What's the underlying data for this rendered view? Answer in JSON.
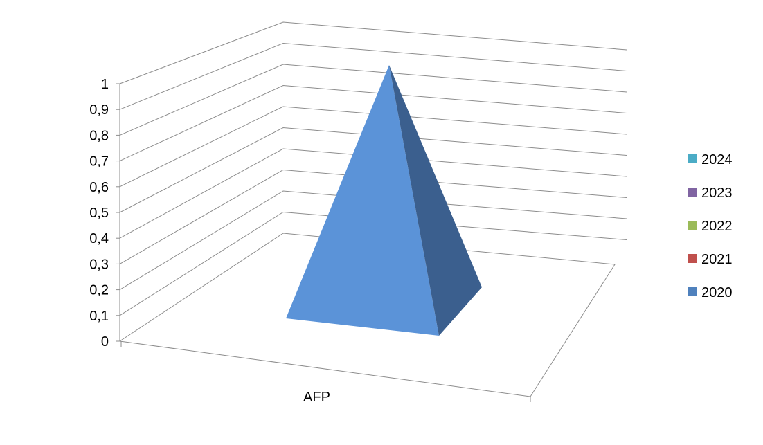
{
  "chart_data": {
    "type": "bar",
    "style": "3d-pyramid",
    "categories": [
      "AFP"
    ],
    "series": [
      {
        "name": "2020",
        "values": [
          1
        ],
        "color": "#4F81BD"
      },
      {
        "name": "2021",
        "values": [
          0
        ],
        "color": "#C0504D"
      },
      {
        "name": "2022",
        "values": [
          0
        ],
        "color": "#9BBB59"
      },
      {
        "name": "2023",
        "values": [
          0
        ],
        "color": "#8064A2"
      },
      {
        "name": "2024",
        "values": [
          0
        ],
        "color": "#4BACC6"
      }
    ],
    "y_ticks": [
      "0",
      "0,1",
      "0,2",
      "0,3",
      "0,4",
      "0,5",
      "0,6",
      "0,7",
      "0,8",
      "0,9",
      "1"
    ],
    "ylim": [
      0,
      1
    ],
    "grid": true,
    "legend_position": "right",
    "legend_order": [
      "2024",
      "2023",
      "2022",
      "2021",
      "2020"
    ]
  }
}
